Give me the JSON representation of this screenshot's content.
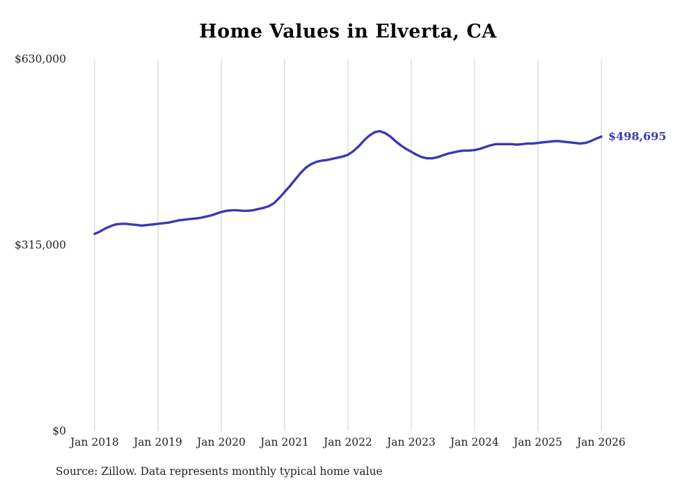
{
  "chart": {
    "title": "Home Values in Elverta, CA",
    "source": "Source: Zillow. Data represents monthly typical home value",
    "end_label": "$498,695",
    "colors": {
      "line": "#3b38b3",
      "grid": "#cccccc",
      "axis_text": "#1f1f1f",
      "title_text": "#0a0a0a"
    }
  },
  "chart_data": {
    "type": "line",
    "title": "Home Values in Elverta, CA",
    "series_name": "Typical home value",
    "frequency": "monthly",
    "x_start": "Jan 2018",
    "x_end": "Jan 2026",
    "x_tick_labels": [
      "Jan 2018",
      "Jan 2019",
      "Jan 2020",
      "Jan 2021",
      "Jan 2022",
      "Jan 2023",
      "Jan 2024",
      "Jan 2025",
      "Jan 2026"
    ],
    "y_ticks": [
      {
        "value": 0,
        "label": "$0"
      },
      {
        "value": 315000,
        "label": "$315,000"
      },
      {
        "value": 630000,
        "label": "$630,000"
      }
    ],
    "ylim": [
      0,
      630000
    ],
    "grid": "vertical-only",
    "legend": "none",
    "end_value": 498695,
    "end_label": "$498,695",
    "values": [
      334000,
      338000,
      343000,
      347000,
      350000,
      351000,
      351000,
      350000,
      349000,
      348000,
      349000,
      350000,
      351000,
      352000,
      353000,
      355000,
      357000,
      358000,
      359000,
      360000,
      361000,
      363000,
      365000,
      368000,
      371000,
      373000,
      374000,
      374000,
      373000,
      373000,
      374000,
      376000,
      378000,
      381000,
      386000,
      395000,
      405000,
      415000,
      426000,
      437000,
      446000,
      452000,
      456000,
      458000,
      459000,
      461000,
      463000,
      465000,
      468000,
      474000,
      482000,
      492000,
      500000,
      506000,
      508000,
      505000,
      499000,
      491000,
      484000,
      478000,
      473000,
      468000,
      464000,
      462000,
      462000,
      464000,
      467000,
      470000,
      472000,
      474000,
      475000,
      475000,
      476000,
      478000,
      481000,
      484000,
      486000,
      486000,
      486000,
      486000,
      485000,
      486000,
      487000,
      487000,
      488000,
      489000,
      490000,
      491000,
      491000,
      490000,
      489000,
      488000,
      487000,
      488000,
      491000,
      495000,
      498695
    ]
  }
}
